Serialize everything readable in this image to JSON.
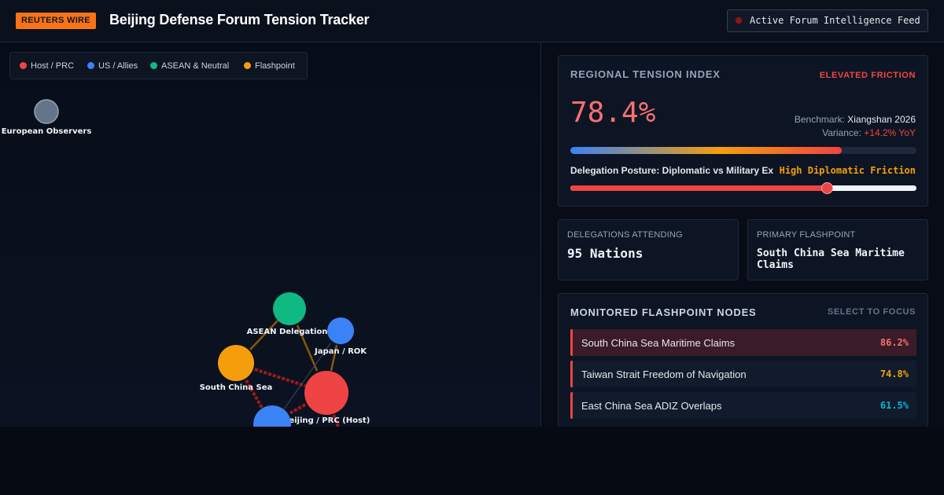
{
  "header": {
    "brand_badge": "REUTERS WIRE",
    "title": "Beijing Defense Forum Tension Tracker",
    "feed_label": "Active Forum Intelligence Feed"
  },
  "legend": [
    {
      "label": "Host / PRC",
      "color": "#ef4444"
    },
    {
      "label": "US / Allies",
      "color": "#3b82f6"
    },
    {
      "label": "ASEAN & Neutral",
      "color": "#10b981"
    },
    {
      "label": "Flashpoint",
      "color": "#f59e0b"
    }
  ],
  "graph": {
    "nodes": [
      {
        "label": "European Observers",
        "group": "observer",
        "color": "#64748b"
      },
      {
        "label": "ASEAN Delegation",
        "group": "asean",
        "color": "#10b981"
      },
      {
        "label": "Japan / ROK",
        "group": "us-allies",
        "color": "#3b82f6"
      },
      {
        "label": "South China Sea",
        "group": "flashpoint",
        "color": "#f59e0b"
      },
      {
        "label": "Beijing / PRC (Host)",
        "group": "host",
        "color": "#ef4444"
      },
      {
        "label": "",
        "group": "us-allies",
        "color": "#3b82f6"
      }
    ]
  },
  "tension": {
    "title": "REGIONAL TENSION INDEX",
    "status": "ELEVATED FRICTION",
    "value_text": "78.4%",
    "value": 0.784,
    "benchmark_label": "Benchmark:",
    "benchmark_value": "Xiangshan 2026",
    "variance_label": "Variance:",
    "variance_value": "+14.2% YoY",
    "posture_label": "Delegation Posture: Diplomatic vs Military Ex",
    "posture_value": "High Diplomatic Friction",
    "posture_level": 0.74
  },
  "stats": {
    "delegations_label": "DELEGATIONS ATTENDING",
    "delegations_value": "95 Nations",
    "flashpoint_label": "PRIMARY FLASHPOINT",
    "flashpoint_value": "South China Sea Maritime Claims"
  },
  "flashpoints": {
    "title": "MONITORED FLASHPOINT NODES",
    "hint": "SELECT TO FOCUS",
    "items": [
      {
        "name": "South China Sea Maritime Claims",
        "pct": "86.2%",
        "color": "#f87171",
        "active": true
      },
      {
        "name": "Taiwan Strait Freedom of Navigation",
        "pct": "74.8%",
        "color": "#f59e0b",
        "active": false
      },
      {
        "name": "East China Sea ADIZ Overlaps",
        "pct": "61.5%",
        "color": "#06b6d4",
        "active": false
      }
    ]
  }
}
